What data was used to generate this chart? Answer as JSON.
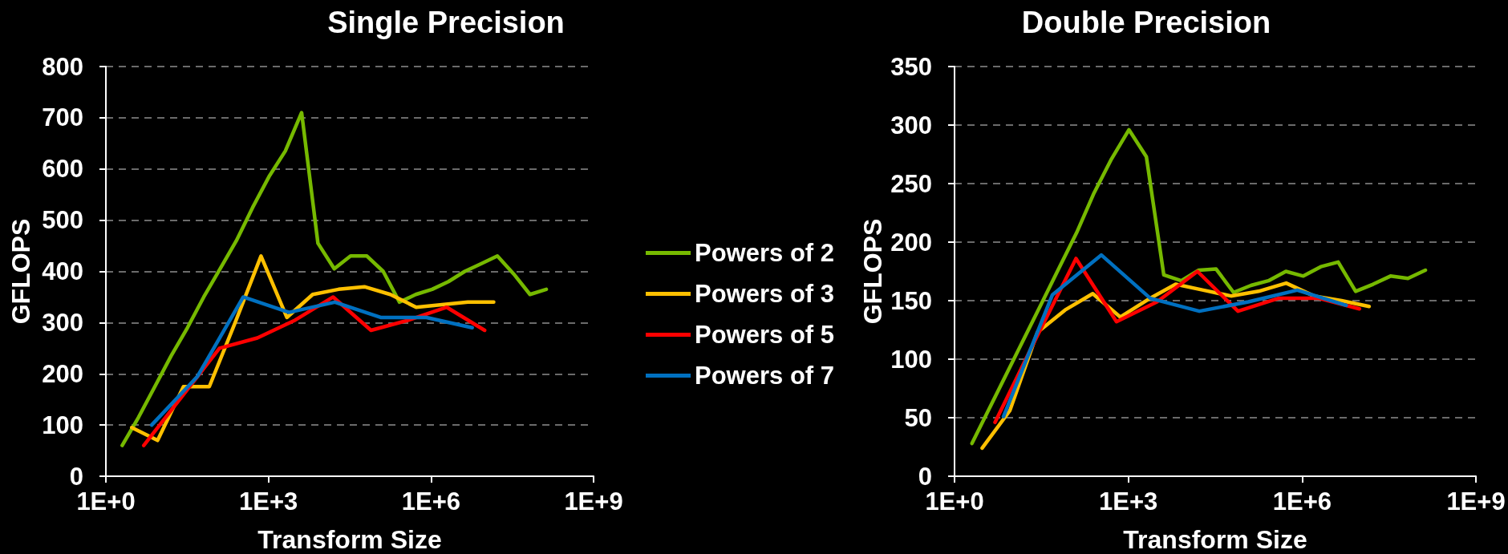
{
  "chart_data": [
    {
      "type": "line",
      "title": "Single Precision",
      "xlabel": "Transform Size",
      "ylabel": "GFLOPS",
      "log": "x",
      "xlim": [
        1,
        1000000000
      ],
      "xticks": [
        {
          "value": 1,
          "label": "1E+0"
        },
        {
          "value": 1000,
          "label": "1E+3"
        },
        {
          "value": 1000000,
          "label": "1E+6"
        },
        {
          "value": 1000000000,
          "label": "1E+9"
        }
      ],
      "ylim": [
        0,
        800
      ],
      "yticks": [
        0,
        100,
        200,
        300,
        400,
        500,
        600,
        700,
        800
      ],
      "grid": "y",
      "legend": "right",
      "marker": "none",
      "line_style": "solid",
      "series": [
        {
          "name": "Powers of 2",
          "color": "#76b900",
          "x": [
            2,
            4,
            8,
            16,
            32,
            64,
            128,
            256,
            512,
            1024,
            2048,
            4096,
            8192,
            16384,
            32768,
            65536,
            131072,
            262144,
            524288,
            1048576,
            2097152,
            4194304,
            8388608,
            16777216,
            33554432,
            67108864,
            134217728
          ],
          "values": [
            60,
            115,
            175,
            235,
            290,
            350,
            405,
            460,
            525,
            585,
            635,
            710,
            455,
            405,
            430,
            430,
            400,
            340,
            355,
            365,
            380,
            400,
            415,
            430,
            395,
            355,
            365
          ]
        },
        {
          "name": "Powers of 3",
          "color": "#ffc000",
          "x": [
            3,
            9,
            27,
            81,
            243,
            729,
            2187,
            6561,
            19683,
            59049,
            177147,
            531441,
            1594323,
            4782969,
            14348907
          ],
          "values": [
            95,
            70,
            175,
            175,
            300,
            430,
            310,
            355,
            365,
            370,
            355,
            330,
            335,
            340,
            340
          ]
        },
        {
          "name": "Powers of 5",
          "color": "#ff0000",
          "x": [
            5,
            25,
            125,
            625,
            3125,
            15625,
            78125,
            390625,
            1953125,
            9765625
          ],
          "values": [
            60,
            155,
            250,
            270,
            305,
            350,
            285,
            305,
            330,
            285
          ]
        },
        {
          "name": "Powers of 7",
          "color": "#0070c0",
          "x": [
            7,
            49,
            343,
            2401,
            16807,
            117649,
            823543,
            5764801
          ],
          "values": [
            100,
            195,
            350,
            320,
            340,
            310,
            310,
            290
          ]
        }
      ]
    },
    {
      "type": "line",
      "title": "Double Precision",
      "xlabel": "Transform Size",
      "ylabel": "GFLOPS",
      "log": "x",
      "xlim": [
        1,
        1000000000
      ],
      "xticks": [
        {
          "value": 1,
          "label": "1E+0"
        },
        {
          "value": 1000,
          "label": "1E+3"
        },
        {
          "value": 1000000,
          "label": "1E+6"
        },
        {
          "value": 1000000000,
          "label": "1E+9"
        }
      ],
      "ylim": [
        0,
        350
      ],
      "yticks": [
        0,
        50,
        100,
        150,
        200,
        250,
        300,
        350
      ],
      "grid": "y",
      "marker": "none",
      "line_style": "solid",
      "series": [
        {
          "color": "#76b900",
          "x": [
            2,
            4,
            8,
            16,
            32,
            64,
            128,
            256,
            512,
            1024,
            2048,
            4096,
            8192,
            16384,
            32768,
            65536,
            131072,
            262144,
            524288,
            1048576,
            2097152,
            4194304,
            8388608,
            16777216,
            33554432,
            67108864,
            134217728
          ],
          "values": [
            28,
            58,
            88,
            118,
            148,
            178,
            208,
            242,
            271,
            296,
            273,
            172,
            167,
            176,
            177,
            157,
            163,
            167,
            175,
            171,
            179,
            183,
            158,
            164,
            171,
            169,
            176
          ]
        },
        {
          "color": "#ffc000",
          "x": [
            3,
            9,
            27,
            81,
            243,
            729,
            2187,
            6561,
            19683,
            59049,
            177147,
            531441,
            1594323,
            4782969,
            14348907
          ],
          "values": [
            24,
            56,
            123,
            142,
            156,
            136,
            151,
            164,
            159,
            154,
            158,
            165,
            154,
            150,
            145
          ]
        },
        {
          "color": "#ff0000",
          "x": [
            5,
            25,
            125,
            625,
            3125,
            15625,
            78125,
            390625,
            1953125,
            9765625
          ],
          "values": [
            46,
            117,
            186,
            132,
            149,
            175,
            141,
            152,
            152,
            143
          ]
        },
        {
          "color": "#0070c0",
          "x": [
            7,
            49,
            343,
            2401,
            16807,
            117649,
            823543,
            5764801
          ],
          "values": [
            51,
            155,
            189,
            152,
            141,
            149,
            159,
            146
          ]
        }
      ]
    }
  ]
}
